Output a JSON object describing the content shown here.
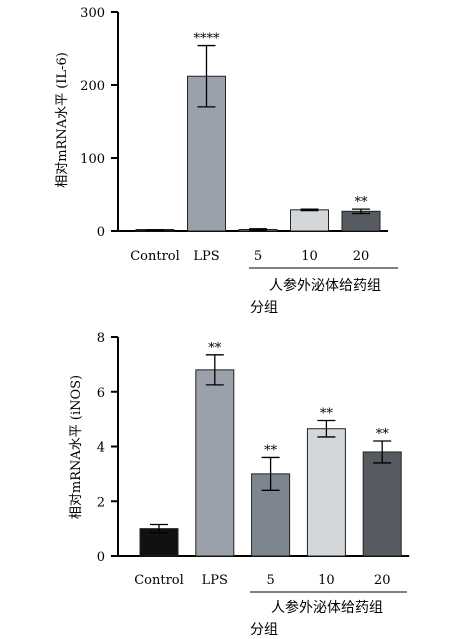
{
  "chart_data": [
    {
      "type": "bar",
      "ylabel": "相对mRNA水平 (IL-6)",
      "ylim": [
        0,
        300
      ],
      "yticks": [
        0,
        100,
        200,
        300
      ],
      "categories": [
        "Control",
        "LPS",
        "5",
        "10",
        "20"
      ],
      "group_label": "人参外泌体给药组",
      "xlabel": "分组",
      "values": [
        1,
        212,
        2,
        29,
        27
      ],
      "errors": [
        0.3,
        42,
        1,
        1,
        3
      ],
      "significance": [
        "",
        "****",
        "",
        "",
        "**"
      ],
      "bar_colors": [
        "#111111",
        "#9aa1aa",
        "#7d868f",
        "#d3d7da",
        "#555b60"
      ],
      "grid": false
    },
    {
      "type": "bar",
      "ylabel": "相对mRNA水平 (iNOS)",
      "ylim": [
        0,
        8
      ],
      "yticks": [
        0,
        2,
        4,
        6,
        8
      ],
      "categories": [
        "Control",
        "LPS",
        "5",
        "10",
        "20"
      ],
      "group_label": "人参外泌体给药组",
      "xlabel": "分组",
      "values": [
        1.0,
        6.8,
        3.0,
        4.65,
        3.8
      ],
      "errors": [
        0.15,
        0.55,
        0.6,
        0.3,
        0.4
      ],
      "significance": [
        "",
        "**",
        "**",
        "**",
        "**"
      ],
      "bar_colors": [
        "#111111",
        "#9aa1aa",
        "#7d868f",
        "#d3d7da",
        "#555b60"
      ],
      "grid": false
    }
  ]
}
